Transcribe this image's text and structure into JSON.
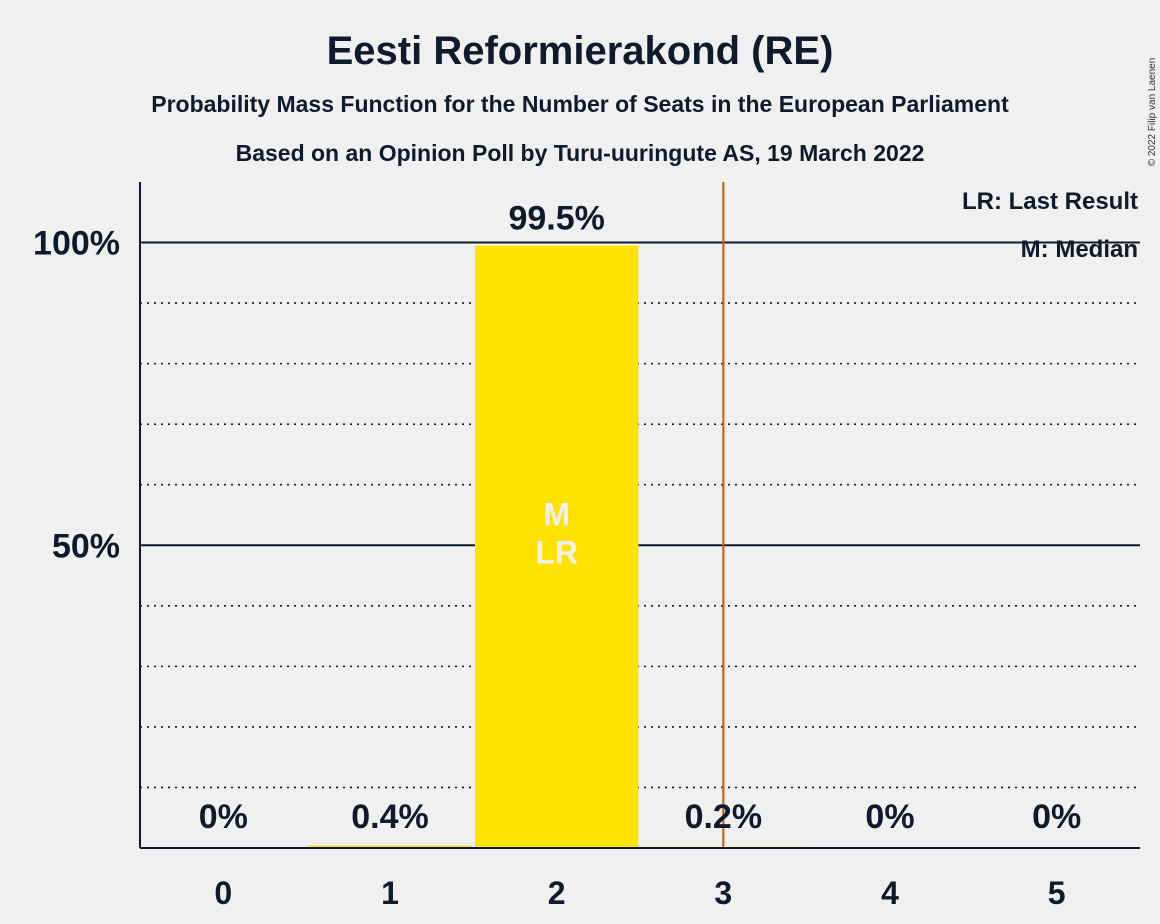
{
  "title": "Eesti Reformierakond (RE)",
  "subtitle1": "Probability Mass Function for the Number of Seats in the European Parliament",
  "subtitle2": "Based on an Opinion Poll by Turu-uuringute AS, 19 March 2022",
  "copyright": "© 2022 Filip van Laenen",
  "legend": {
    "lr": "LR: Last Result",
    "median": "M: Median"
  },
  "colors": {
    "bar": "#ffe300",
    "last_result_line": "#cc5500",
    "axis": "#0f1b2d",
    "background": "#f0f0f0"
  },
  "chart_data": {
    "type": "bar",
    "categories": [
      "0",
      "1",
      "2",
      "3",
      "4",
      "5"
    ],
    "values": [
      0,
      0.4,
      99.5,
      0.2,
      0,
      0
    ],
    "data_labels": [
      "0%",
      "0.4%",
      "99.5%",
      "0.2%",
      "0%",
      "0%"
    ],
    "ylim": [
      0,
      110
    ],
    "yticks": [
      {
        "value": 100,
        "label": "100%"
      },
      {
        "value": 50,
        "label": "50%"
      }
    ],
    "minor_grid_step": 10,
    "median_seat": "2",
    "last_result_seat": "2",
    "inbar_labels": [
      "M",
      "LR"
    ],
    "threshold_line_x": 3.5
  }
}
